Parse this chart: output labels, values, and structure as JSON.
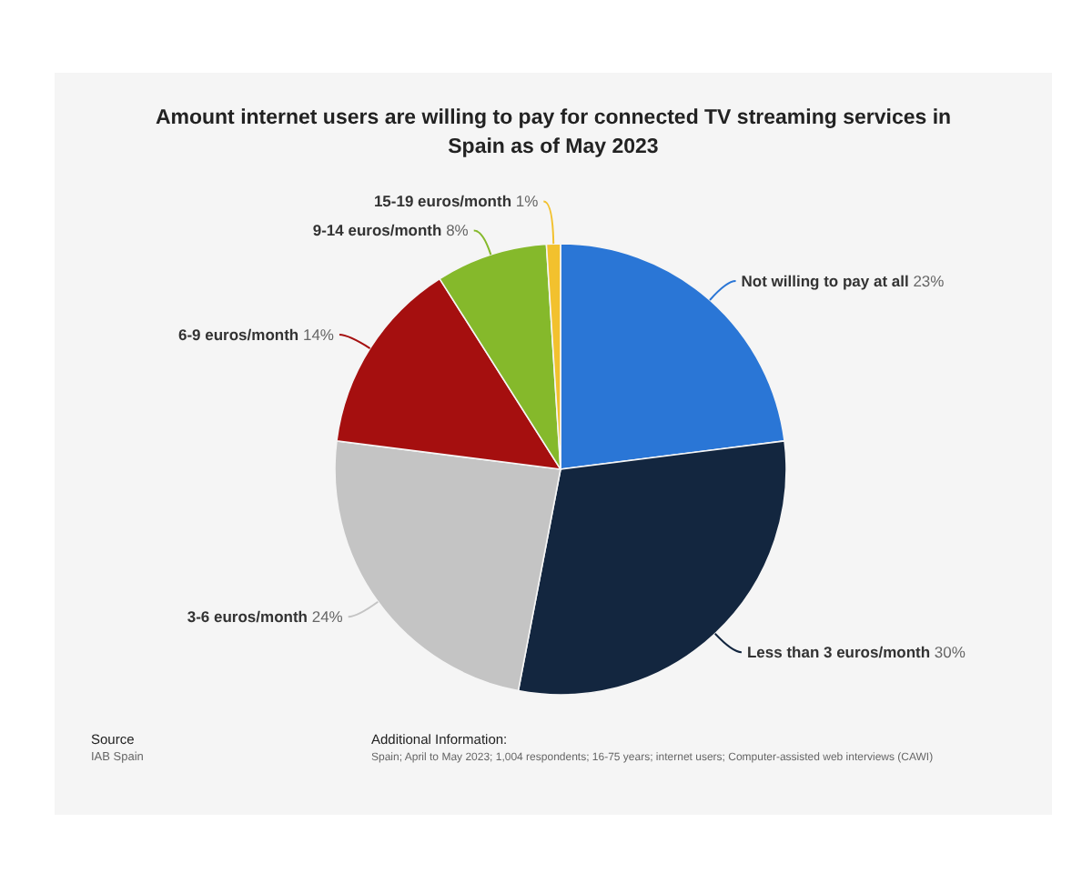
{
  "chart_data": {
    "type": "pie",
    "title": "Amount internet users are willing to pay for connected TV streaming services in Spain as of May 2023",
    "categories": [
      "Not willing to pay at all",
      "Less than 3 euros/month",
      "3-6 euros/month",
      "6-9 euros/month",
      "9-14 euros/month",
      "15-19 euros/month"
    ],
    "values": [
      23,
      30,
      24,
      14,
      8,
      1
    ],
    "value_labels": [
      "23%",
      "30%",
      "24%",
      "14%",
      "8%",
      "1%"
    ],
    "colors": [
      "#2a76d6",
      "#13263f",
      "#c4c4c4",
      "#a50f0f",
      "#85b92b",
      "#f2c12e"
    ],
    "annotations": [
      "Source",
      "IAB Spain",
      "Additional Information:",
      "Spain; April to May 2023; 1,004 respondents; 16-75 years; internet users; Computer-assisted web interviews (CAWI)"
    ]
  }
}
